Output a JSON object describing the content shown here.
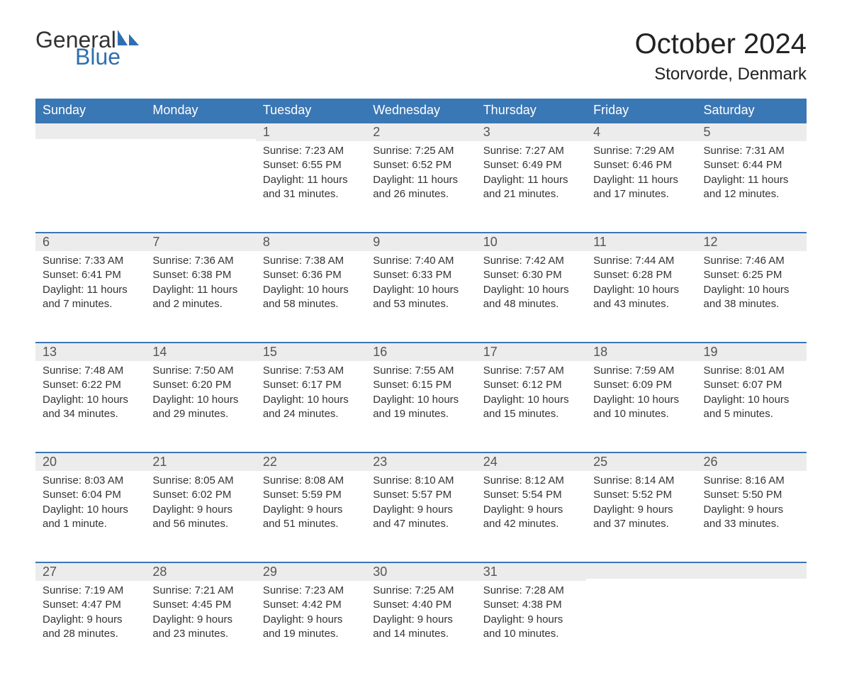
{
  "logo": {
    "text1": "General",
    "text2": "Blue",
    "icon_color": "#2f6fb0",
    "text1_color": "#333333",
    "text2_color": "#2f6fb0"
  },
  "title": "October 2024",
  "location": "Storvorde, Denmark",
  "colors": {
    "header_bg": "#3a77b5",
    "header_text": "#ffffff",
    "daynum_bg": "#ececec",
    "daynum_border": "#3a77b5",
    "body_text": "#333333",
    "page_bg": "#ffffff"
  },
  "typography": {
    "title_fontsize": 40,
    "location_fontsize": 24,
    "dayheader_fontsize": 18,
    "daynum_fontsize": 18,
    "content_fontsize": 15
  },
  "calendar": {
    "type": "table",
    "columns": [
      "Sunday",
      "Monday",
      "Tuesday",
      "Wednesday",
      "Thursday",
      "Friday",
      "Saturday"
    ],
    "weeks": [
      [
        null,
        null,
        {
          "n": "1",
          "sunrise": "7:23 AM",
          "sunset": "6:55 PM",
          "daylight": "11 hours and 31 minutes."
        },
        {
          "n": "2",
          "sunrise": "7:25 AM",
          "sunset": "6:52 PM",
          "daylight": "11 hours and 26 minutes."
        },
        {
          "n": "3",
          "sunrise": "7:27 AM",
          "sunset": "6:49 PM",
          "daylight": "11 hours and 21 minutes."
        },
        {
          "n": "4",
          "sunrise": "7:29 AM",
          "sunset": "6:46 PM",
          "daylight": "11 hours and 17 minutes."
        },
        {
          "n": "5",
          "sunrise": "7:31 AM",
          "sunset": "6:44 PM",
          "daylight": "11 hours and 12 minutes."
        }
      ],
      [
        {
          "n": "6",
          "sunrise": "7:33 AM",
          "sunset": "6:41 PM",
          "daylight": "11 hours and 7 minutes."
        },
        {
          "n": "7",
          "sunrise": "7:36 AM",
          "sunset": "6:38 PM",
          "daylight": "11 hours and 2 minutes."
        },
        {
          "n": "8",
          "sunrise": "7:38 AM",
          "sunset": "6:36 PM",
          "daylight": "10 hours and 58 minutes."
        },
        {
          "n": "9",
          "sunrise": "7:40 AM",
          "sunset": "6:33 PM",
          "daylight": "10 hours and 53 minutes."
        },
        {
          "n": "10",
          "sunrise": "7:42 AM",
          "sunset": "6:30 PM",
          "daylight": "10 hours and 48 minutes."
        },
        {
          "n": "11",
          "sunrise": "7:44 AM",
          "sunset": "6:28 PM",
          "daylight": "10 hours and 43 minutes."
        },
        {
          "n": "12",
          "sunrise": "7:46 AM",
          "sunset": "6:25 PM",
          "daylight": "10 hours and 38 minutes."
        }
      ],
      [
        {
          "n": "13",
          "sunrise": "7:48 AM",
          "sunset": "6:22 PM",
          "daylight": "10 hours and 34 minutes."
        },
        {
          "n": "14",
          "sunrise": "7:50 AM",
          "sunset": "6:20 PM",
          "daylight": "10 hours and 29 minutes."
        },
        {
          "n": "15",
          "sunrise": "7:53 AM",
          "sunset": "6:17 PM",
          "daylight": "10 hours and 24 minutes."
        },
        {
          "n": "16",
          "sunrise": "7:55 AM",
          "sunset": "6:15 PM",
          "daylight": "10 hours and 19 minutes."
        },
        {
          "n": "17",
          "sunrise": "7:57 AM",
          "sunset": "6:12 PM",
          "daylight": "10 hours and 15 minutes."
        },
        {
          "n": "18",
          "sunrise": "7:59 AM",
          "sunset": "6:09 PM",
          "daylight": "10 hours and 10 minutes."
        },
        {
          "n": "19",
          "sunrise": "8:01 AM",
          "sunset": "6:07 PM",
          "daylight": "10 hours and 5 minutes."
        }
      ],
      [
        {
          "n": "20",
          "sunrise": "8:03 AM",
          "sunset": "6:04 PM",
          "daylight": "10 hours and 1 minute."
        },
        {
          "n": "21",
          "sunrise": "8:05 AM",
          "sunset": "6:02 PM",
          "daylight": "9 hours and 56 minutes."
        },
        {
          "n": "22",
          "sunrise": "8:08 AM",
          "sunset": "5:59 PM",
          "daylight": "9 hours and 51 minutes."
        },
        {
          "n": "23",
          "sunrise": "8:10 AM",
          "sunset": "5:57 PM",
          "daylight": "9 hours and 47 minutes."
        },
        {
          "n": "24",
          "sunrise": "8:12 AM",
          "sunset": "5:54 PM",
          "daylight": "9 hours and 42 minutes."
        },
        {
          "n": "25",
          "sunrise": "8:14 AM",
          "sunset": "5:52 PM",
          "daylight": "9 hours and 37 minutes."
        },
        {
          "n": "26",
          "sunrise": "8:16 AM",
          "sunset": "5:50 PM",
          "daylight": "9 hours and 33 minutes."
        }
      ],
      [
        {
          "n": "27",
          "sunrise": "7:19 AM",
          "sunset": "4:47 PM",
          "daylight": "9 hours and 28 minutes."
        },
        {
          "n": "28",
          "sunrise": "7:21 AM",
          "sunset": "4:45 PM",
          "daylight": "9 hours and 23 minutes."
        },
        {
          "n": "29",
          "sunrise": "7:23 AM",
          "sunset": "4:42 PM",
          "daylight": "9 hours and 19 minutes."
        },
        {
          "n": "30",
          "sunrise": "7:25 AM",
          "sunset": "4:40 PM",
          "daylight": "9 hours and 14 minutes."
        },
        {
          "n": "31",
          "sunrise": "7:28 AM",
          "sunset": "4:38 PM",
          "daylight": "9 hours and 10 minutes."
        },
        null,
        null
      ]
    ],
    "labels": {
      "sunrise": "Sunrise:",
      "sunset": "Sunset:",
      "daylight": "Daylight:"
    }
  }
}
